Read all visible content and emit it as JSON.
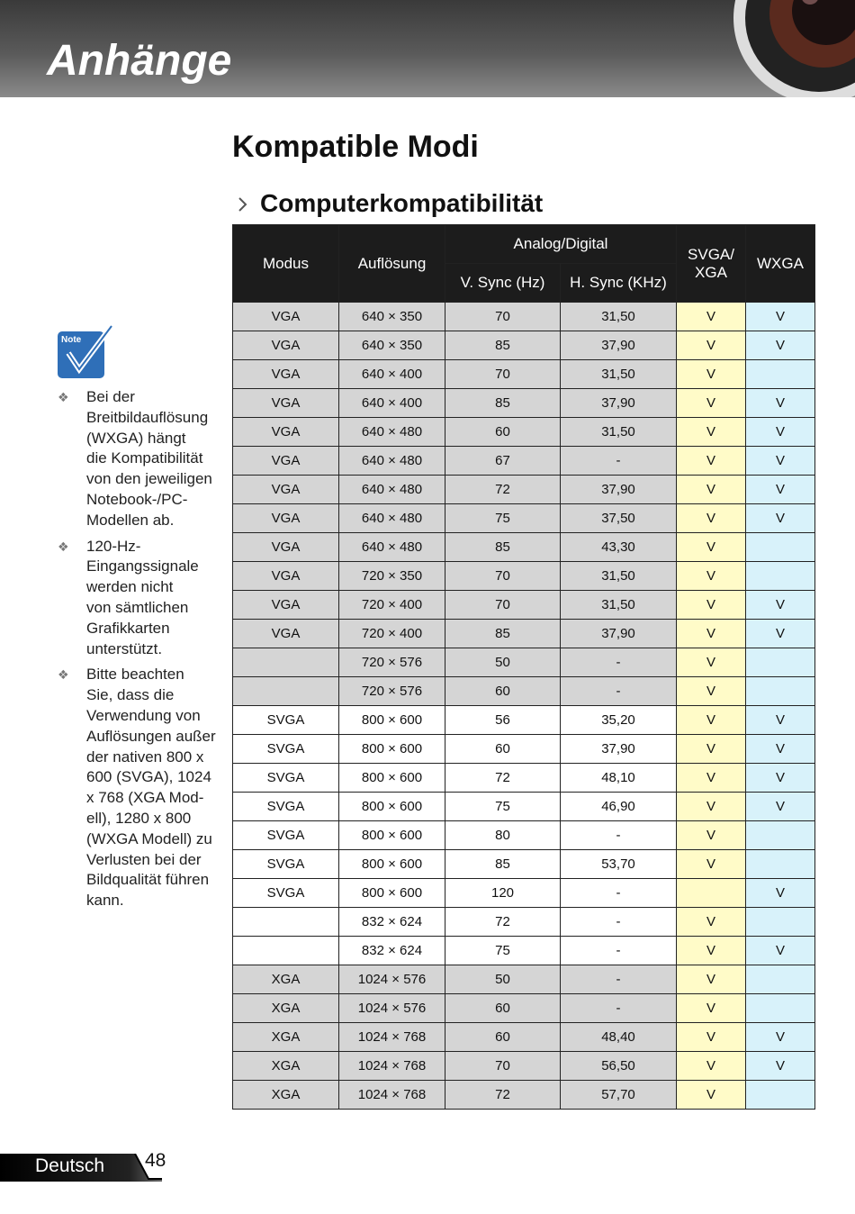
{
  "header": {
    "section": "Anhänge"
  },
  "title": "Kompatible Modi",
  "subtitle": "Computerkompatibilität",
  "table": {
    "headers": {
      "mode": "Modus",
      "resolution": "Auflösung",
      "group": "Analog/Digital",
      "vsync": "V. Sync (Hz)",
      "hsync": "H. Sync (KHz)",
      "svga_xga": "SVGA/ XGA",
      "wxga": "WXGA"
    },
    "groups": [
      {
        "rows": [
          [
            "VGA",
            "640 × 350",
            "70",
            "31,50",
            "V",
            "V"
          ],
          [
            "VGA",
            "640 × 350",
            "85",
            "37,90",
            "V",
            "V"
          ],
          [
            "VGA",
            "640 × 400",
            "70",
            "31,50",
            "V",
            null
          ],
          [
            "VGA",
            "640 × 400",
            "85",
            "37,90",
            "V",
            "V"
          ],
          [
            "VGA",
            "640 × 480",
            "60",
            "31,50",
            "V",
            "V"
          ],
          [
            "VGA",
            "640 × 480",
            "67",
            "-",
            "V",
            "V"
          ],
          [
            "VGA",
            "640 × 480",
            "72",
            "37,90",
            "V",
            "V"
          ],
          [
            "VGA",
            "640 × 480",
            "75",
            "37,50",
            "V",
            "V"
          ],
          [
            "VGA",
            "640 × 480",
            "85",
            "43,30",
            "V",
            null
          ],
          [
            "VGA",
            "720 × 350",
            "70",
            "31,50",
            "V",
            null
          ],
          [
            "VGA",
            "720 × 400",
            "70",
            "31,50",
            "V",
            "V"
          ],
          [
            "VGA",
            "720 × 400",
            "85",
            "37,90",
            "V",
            "V"
          ],
          [
            null,
            "720 × 576",
            "50",
            "-",
            "V",
            null
          ],
          [
            null,
            "720 × 576",
            "60",
            "-",
            "V",
            null
          ]
        ]
      },
      {
        "rows": [
          [
            "SVGA",
            "800 × 600",
            "56",
            "35,20",
            "V",
            "V"
          ],
          [
            "SVGA",
            "800 × 600",
            "60",
            "37,90",
            "V",
            "V"
          ],
          [
            "SVGA",
            "800 × 600",
            "72",
            "48,10",
            "V",
            "V"
          ],
          [
            "SVGA",
            "800 × 600",
            "75",
            "46,90",
            "V",
            "V"
          ],
          [
            "SVGA",
            "800 × 600",
            "80",
            "-",
            "V",
            null
          ],
          [
            "SVGA",
            "800 × 600",
            "85",
            "53,70",
            "V",
            null
          ],
          [
            "SVGA",
            "800 × 600",
            "120",
            "-",
            null,
            "V"
          ],
          [
            null,
            "832 × 624",
            "72",
            "-",
            "V",
            null
          ],
          [
            null,
            "832 × 624",
            "75",
            "-",
            "V",
            "V"
          ]
        ]
      },
      {
        "rows": [
          [
            "XGA",
            "1024 × 576",
            "50",
            "-",
            "V",
            null
          ],
          [
            "XGA",
            "1024 × 576",
            "60",
            "-",
            "V",
            null
          ],
          [
            "XGA",
            "1024 × 768",
            "60",
            "48,40",
            "V",
            "V"
          ],
          [
            "XGA",
            "1024 × 768",
            "70",
            "56,50",
            "V",
            "V"
          ],
          [
            "XGA",
            "1024 × 768",
            "72",
            "57,70",
            "V",
            null
          ]
        ]
      }
    ]
  },
  "notes": [
    {
      "lines": [
        "Bei der",
        "Breitbildauflösung",
        "(WXGA) hängt",
        "die Kompatibilität",
        "von den jeweiligen",
        "Notebook-/PC-",
        "Modellen ab."
      ]
    },
    {
      "lines": [
        "120-Hz-",
        "Eingangssignale",
        "werden nicht",
        "von sämtlichen",
        "Grafikkarten",
        "unterstützt."
      ]
    },
    {
      "lines": [
        "Bitte beachten",
        "Sie, dass die",
        "Verwendung von",
        "Auflösungen außer",
        "der nativen 800 x",
        "600 (SVGA), 1024",
        "x 768 (XGA Mod-",
        "ell), 1280 x 800",
        "(WXGA Modell) zu",
        "Verlusten bei der",
        "Bildqualität führen",
        "kann."
      ]
    }
  ],
  "note_icon": "Note",
  "footer": {
    "language": "Deutsch",
    "page": "48"
  }
}
